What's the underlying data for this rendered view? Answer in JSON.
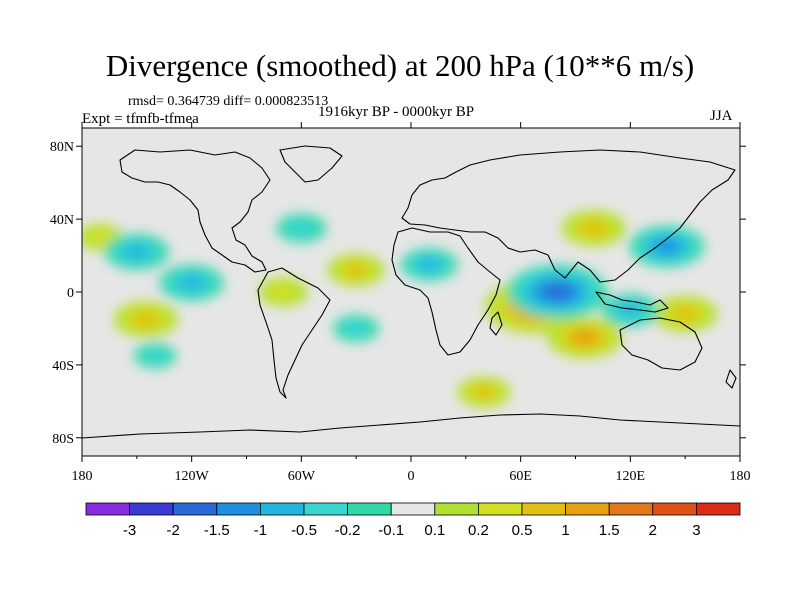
{
  "figure": {
    "title": "Divergence (smoothed) at 200 hPa (10**6 m/s)",
    "stats": "rmsd= 0.364739 diff= 0.000823513",
    "experiment": "Expt = tfmfb-tfmea",
    "period": "1916kyr BP - 0000kyr BP",
    "season": "JJA"
  },
  "map": {
    "projection": "cylindrical equidistant",
    "lon_range": [
      -180,
      180
    ],
    "lat_range": [
      -90,
      90
    ],
    "lon_ticks": [
      {
        "value": -180,
        "label": "180"
      },
      {
        "value": -120,
        "label": "120W"
      },
      {
        "value": -60,
        "label": "60W"
      },
      {
        "value": 0,
        "label": "0"
      },
      {
        "value": 60,
        "label": "60E"
      },
      {
        "value": 120,
        "label": "120E"
      },
      {
        "value": 180,
        "label": "180"
      }
    ],
    "lat_ticks": [
      {
        "value": 80,
        "label": "80N"
      },
      {
        "value": 40,
        "label": "40N"
      },
      {
        "value": 0,
        "label": "0"
      },
      {
        "value": -40,
        "label": "40S"
      },
      {
        "value": -80,
        "label": "80S"
      }
    ],
    "background_color": "#e6e6e6"
  },
  "colorbar": {
    "colors": [
      "#8a2be2",
      "#3a3ad6",
      "#2a6ad8",
      "#1e90e0",
      "#20b6e0",
      "#38d6d0",
      "#30d8a8",
      "#e6e6e6",
      "#b0e030",
      "#d0e020",
      "#e0c010",
      "#e6a010",
      "#e27818",
      "#e05018",
      "#de2a18"
    ],
    "labels": [
      "-3",
      "-2",
      "-1.5",
      "-1",
      "-0.5",
      "-0.2",
      "-0.1",
      "0.1",
      "0.2",
      "0.5",
      "1",
      "1.5",
      "2",
      "3"
    ]
  },
  "chart_data": {
    "type": "heatmap",
    "title": "Divergence (smoothed) at 200 hPa (10**6 m/s)",
    "variable": "Divergence difference at 200 hPa",
    "units": "10**6 m/s",
    "levels": [
      -3,
      -2,
      -1.5,
      -1,
      -0.5,
      -0.2,
      -0.1,
      0.1,
      0.2,
      0.5,
      1,
      1.5,
      2,
      3
    ],
    "anomaly_features": [
      {
        "lon": 68,
        "lat": -8,
        "value": 2.0,
        "type": "positive"
      },
      {
        "lon": 95,
        "lat": -25,
        "value": 1.3,
        "type": "positive"
      },
      {
        "lon": 100,
        "lat": 35,
        "value": 1.0,
        "type": "positive"
      },
      {
        "lon": -145,
        "lat": -15,
        "value": 1.0,
        "type": "positive"
      },
      {
        "lon": -30,
        "lat": 12,
        "value": 0.8,
        "type": "positive"
      },
      {
        "lon": -70,
        "lat": 0,
        "value": 0.6,
        "type": "positive"
      },
      {
        "lon": 40,
        "lat": -55,
        "value": 0.7,
        "type": "positive"
      },
      {
        "lon": -170,
        "lat": 30,
        "value": 0.5,
        "type": "positive"
      },
      {
        "lon": 150,
        "lat": -12,
        "value": 1.0,
        "type": "positive"
      },
      {
        "lon": 80,
        "lat": 0,
        "value": -2.0,
        "type": "negative"
      },
      {
        "lon": 140,
        "lat": 25,
        "value": -1.3,
        "type": "negative"
      },
      {
        "lon": -120,
        "lat": 5,
        "value": -1.0,
        "type": "negative"
      },
      {
        "lon": -150,
        "lat": 22,
        "value": -1.0,
        "type": "negative"
      },
      {
        "lon": 10,
        "lat": 15,
        "value": -0.8,
        "type": "negative"
      },
      {
        "lon": 120,
        "lat": -10,
        "value": -0.8,
        "type": "negative"
      },
      {
        "lon": -60,
        "lat": 35,
        "value": -0.6,
        "type": "negative"
      },
      {
        "lon": -30,
        "lat": -20,
        "value": -0.5,
        "type": "negative"
      },
      {
        "lon": -140,
        "lat": -35,
        "value": -0.4,
        "type": "negative"
      }
    ]
  }
}
